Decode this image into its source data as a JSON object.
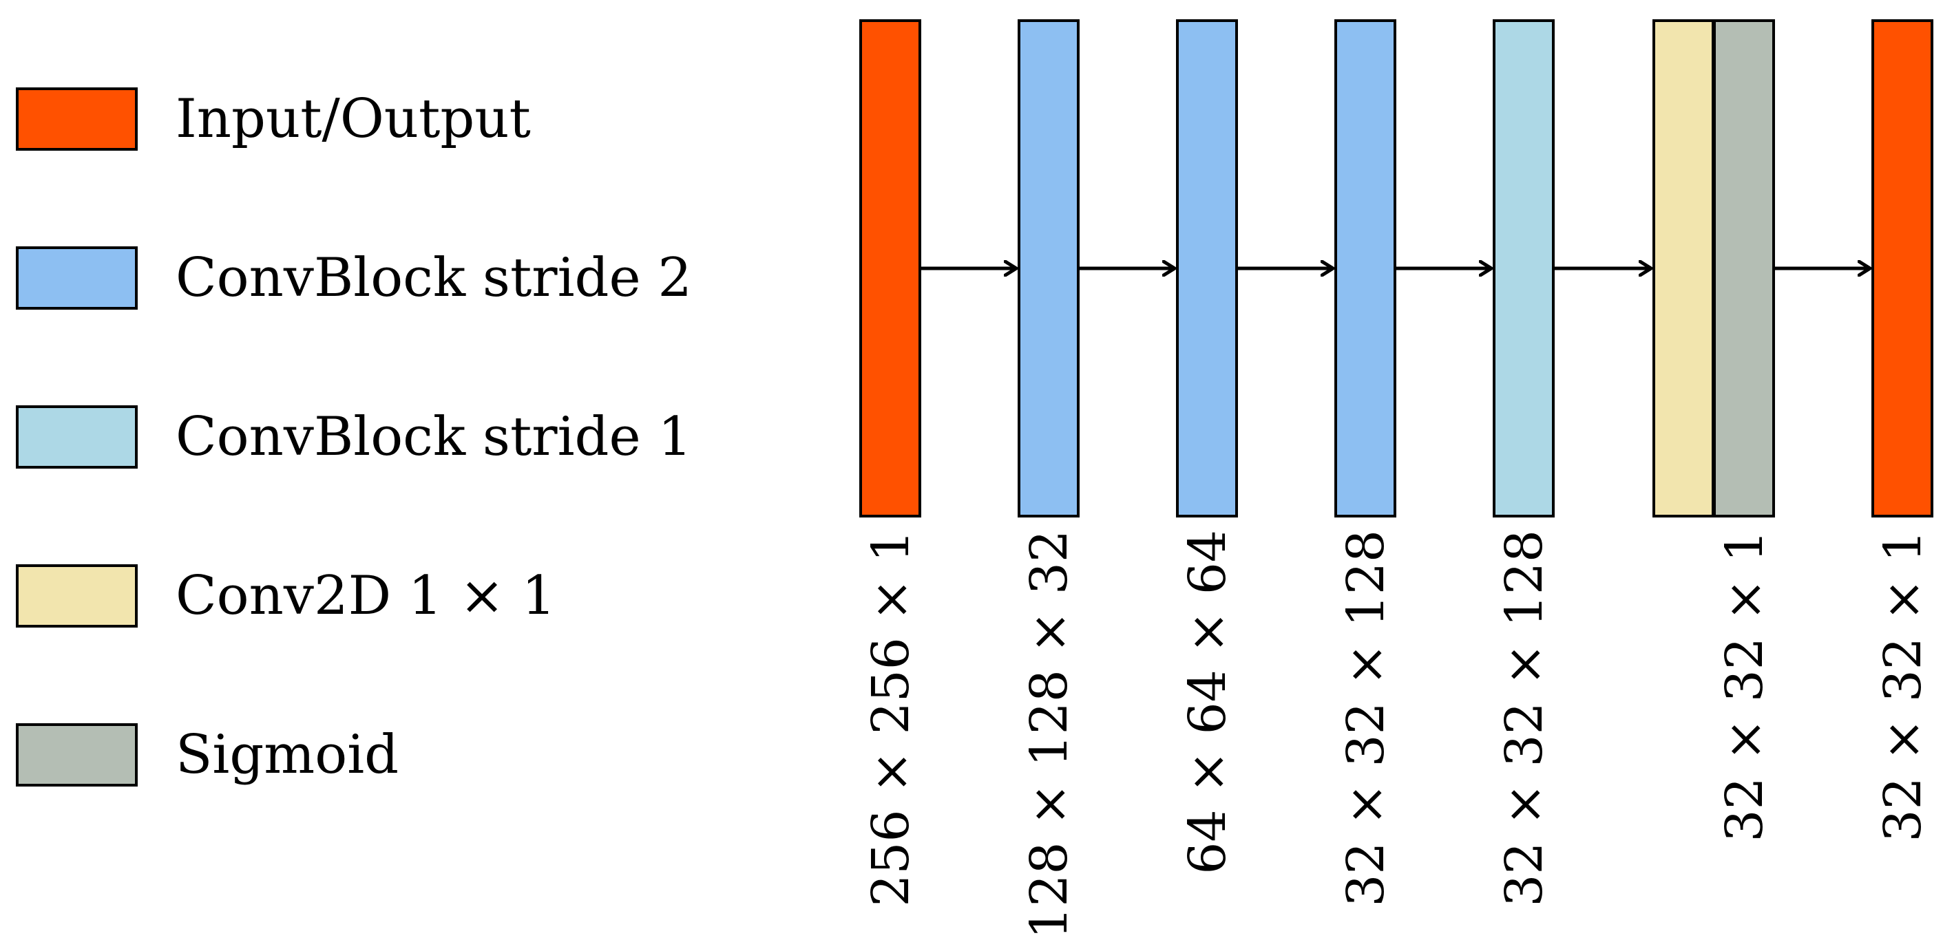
{
  "legend": [
    {
      "key": "io",
      "label": "Input/Output",
      "color": "#FF5100"
    },
    {
      "key": "s2",
      "label": "ConvBlock stride 2",
      "color": "#8DBFF2"
    },
    {
      "key": "s1",
      "label": "ConvBlock stride 1",
      "color": "#ADD8E6"
    },
    {
      "key": "conv",
      "label": "Conv2D 1 × 1",
      "color": "#F2E5AE"
    },
    {
      "key": "sig",
      "label": "Sigmoid",
      "color": "#B4BEB4"
    }
  ],
  "layers": [
    {
      "type": "io",
      "dims": "256 × 256 × 1"
    },
    {
      "type": "s2",
      "dims": "128 × 128 × 32"
    },
    {
      "type": "s2",
      "dims": "64 × 64 × 64"
    },
    {
      "type": "s2",
      "dims": "32 × 32 × 128"
    },
    {
      "type": "s1",
      "dims": "32 × 32 × 128"
    },
    {
      "type": "conv",
      "dims": ""
    },
    {
      "type": "sig",
      "dims": "32 × 32 × 1"
    },
    {
      "type": "io",
      "dims": "32 × 32 × 1"
    }
  ]
}
